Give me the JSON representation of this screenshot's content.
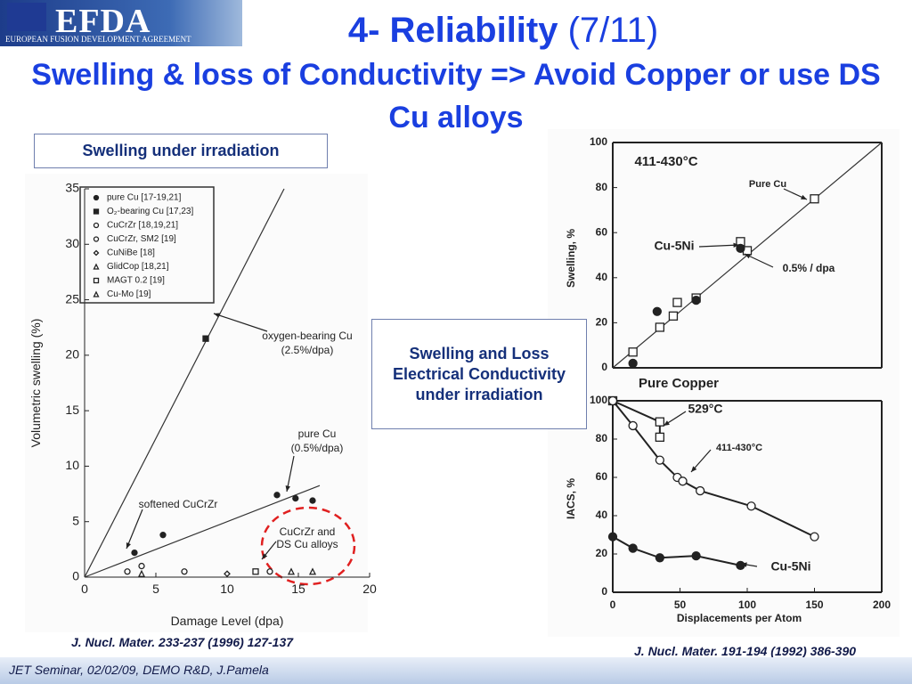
{
  "header": {
    "logo": "EFDA",
    "logo_subtitle": "EUROPEAN FUSION DEVELOPMENT AGREEMENT",
    "title": "4- Reliability",
    "title_suffix": "(7/11)",
    "subtitle": "Swelling & loss of Conductivity => Avoid Copper or use DS Cu alloys"
  },
  "left_box": "Swelling under irradiation",
  "center_box": "Swelling and Loss Electrical Conductivity under irradiation",
  "left_ref": "J. Nucl. Mater. 233-237 (1996) 127-137",
  "right_ref": "J. Nucl. Mater. 191-194 (1992) 386-390",
  "footer": "JET Seminar, 02/02/09, DEMO R&D, J.Pamela",
  "chart_data": [
    {
      "type": "scatter",
      "xlabel": "Damage Level (dpa)",
      "ylabel": "Volumetric swelling (%)",
      "xlim": [
        0,
        20
      ],
      "xticks": [
        0,
        5,
        10,
        15,
        20
      ],
      "ylim": [
        0,
        35
      ],
      "yticks": [
        0,
        5,
        10,
        15,
        20,
        25,
        30,
        35
      ],
      "legend": "upper left",
      "series": [
        {
          "name": "pure Cu [17-19,21]",
          "marker": "filled-circle",
          "color": "#222222",
          "x": [
            3.5,
            5.5,
            13.5,
            14.8,
            16
          ],
          "values": [
            2.2,
            3.8,
            7.4,
            7.1,
            6.9
          ]
        },
        {
          "name": "O₂-bearing Cu [17,23]",
          "marker": "filled-square",
          "color": "#222222",
          "x": [
            8.5
          ],
          "values": [
            21.5
          ]
        },
        {
          "name": "CuCrZr [18,19,21]",
          "marker": "open-circle",
          "color": "#222222",
          "x": [
            3,
            13
          ],
          "values": [
            0.5,
            0.5
          ]
        },
        {
          "name": "CuCrZr, SM2 [19]",
          "marker": "open-circle",
          "color": "#222222",
          "x": [
            4,
            7
          ],
          "values": [
            1,
            0.5
          ]
        },
        {
          "name": "CuNiBe [18]",
          "marker": "open-diamond",
          "color": "#222222",
          "x": [
            10
          ],
          "values": [
            0.3
          ]
        },
        {
          "name": "GlidCop [18,21]",
          "marker": "open-triangle",
          "color": "#222222",
          "x": [
            14.5,
            16
          ],
          "values": [
            0.5,
            0.5
          ]
        },
        {
          "name": "MAGT 0.2 [19]",
          "marker": "open-square",
          "color": "#222222",
          "x": [
            12
          ],
          "values": [
            0.5
          ]
        },
        {
          "name": "Cu-Mo [19]",
          "marker": "open-triangle",
          "color": "#222222",
          "x": [
            4
          ],
          "values": [
            0.3
          ]
        }
      ],
      "fit_lines": [
        {
          "x": [
            0,
            14
          ],
          "values": [
            0,
            35
          ]
        },
        {
          "x": [
            0,
            16.5
          ],
          "values": [
            0,
            8.25
          ]
        }
      ],
      "annotations": [
        "oxygen-bearing Cu",
        "(2.5%/dpa)",
        "pure Cu",
        "(0.5%/dpa)",
        "softened CuCrZr",
        "CuCrZr and",
        "DS Cu alloys"
      ]
    },
    {
      "type": "scatter",
      "title": "411-430°C",
      "ylabel": "Swelling, %",
      "xlim": [
        0,
        200
      ],
      "ylim": [
        0,
        100
      ],
      "yticks": [
        0,
        20,
        40,
        60,
        80,
        100
      ],
      "series": [
        {
          "name": "Pure Cu",
          "marker": "open-square",
          "color": "#222222",
          "x": [
            15,
            35,
            45,
            48,
            62,
            95,
            100,
            150
          ],
          "values": [
            7,
            18,
            23,
            29,
            31,
            56,
            52,
            75
          ]
        },
        {
          "name": "Cu-5Ni",
          "marker": "filled-circle",
          "color": "#222222",
          "x": [
            15,
            33,
            62,
            95
          ],
          "values": [
            2,
            25,
            30,
            53
          ]
        }
      ],
      "fit_lines": [
        {
          "x": [
            0,
            200
          ],
          "values": [
            0,
            100
          ]
        }
      ],
      "annotations": [
        "0.5% / dpa"
      ]
    },
    {
      "type": "line",
      "title": "Pure Copper",
      "xlabel": "Displacements per Atom",
      "ylabel": "IACS, %",
      "xlim": [
        0,
        200
      ],
      "xticks": [
        0,
        50,
        100,
        150,
        200
      ],
      "ylim": [
        0,
        100
      ],
      "yticks": [
        0,
        20,
        40,
        60,
        80,
        100
      ],
      "series": [
        {
          "name": "529°C",
          "marker": "open-square",
          "color": "#222222",
          "x": [
            0,
            35,
            35
          ],
          "values": [
            100,
            89,
            81
          ]
        },
        {
          "name": "411-430°C",
          "marker": "open-circle",
          "color": "#222222",
          "x": [
            0,
            15,
            35,
            48,
            52,
            65,
            103,
            150
          ],
          "values": [
            100,
            87,
            69,
            60,
            58,
            53,
            45,
            29
          ]
        },
        {
          "name": "Cu-5Ni",
          "marker": "filled-circle",
          "color": "#222222",
          "x": [
            0,
            15,
            35,
            62,
            95
          ],
          "values": [
            29,
            23,
            18,
            19,
            14
          ]
        }
      ]
    }
  ]
}
